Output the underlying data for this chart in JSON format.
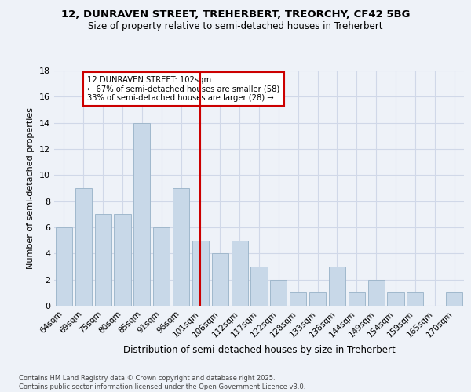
{
  "title_line1": "12, DUNRAVEN STREET, TREHERBERT, TREORCHY, CF42 5BG",
  "title_line2": "Size of property relative to semi-detached houses in Treherbert",
  "xlabel": "Distribution of semi-detached houses by size in Treherbert",
  "ylabel": "Number of semi-detached properties",
  "footer_line1": "Contains HM Land Registry data © Crown copyright and database right 2025.",
  "footer_line2": "Contains public sector information licensed under the Open Government Licence v3.0.",
  "categories": [
    "64sqm",
    "69sqm",
    "75sqm",
    "80sqm",
    "85sqm",
    "91sqm",
    "96sqm",
    "101sqm",
    "106sqm",
    "112sqm",
    "117sqm",
    "122sqm",
    "128sqm",
    "133sqm",
    "138sqm",
    "144sqm",
    "149sqm",
    "154sqm",
    "159sqm",
    "165sqm",
    "170sqm"
  ],
  "values": [
    6,
    9,
    7,
    7,
    14,
    6,
    9,
    5,
    4,
    5,
    3,
    2,
    1,
    1,
    3,
    1,
    2,
    1,
    1,
    0,
    1
  ],
  "bar_color": "#c8d8e8",
  "bar_edge_color": "#a0b8cc",
  "highlight_index": 7,
  "highlight_line_color": "#cc0000",
  "annotation_text": "12 DUNRAVEN STREET: 102sqm\n← 67% of semi-detached houses are smaller (58)\n33% of semi-detached houses are larger (28) →",
  "annotation_box_color": "#ffffff",
  "annotation_box_edge_color": "#cc0000",
  "ylim": [
    0,
    18
  ],
  "yticks": [
    0,
    2,
    4,
    6,
    8,
    10,
    12,
    14,
    16,
    18
  ],
  "grid_color": "#d0d8e8",
  "background_color": "#eef2f8"
}
